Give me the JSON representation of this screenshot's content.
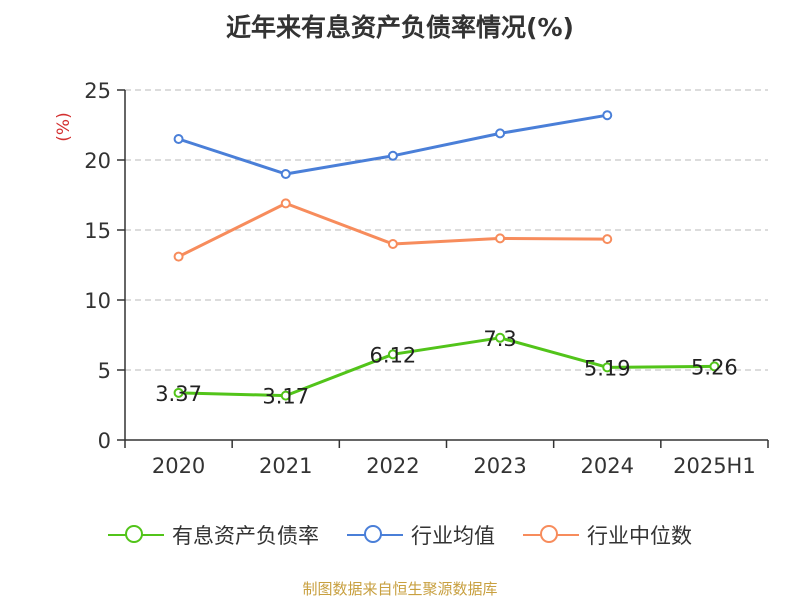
{
  "chart_data": {
    "type": "line",
    "title": "近年来有息资产负债率情况(%)",
    "ylabel": "(%)",
    "categories": [
      "2020",
      "2021",
      "2022",
      "2023",
      "2024",
      "2025H1"
    ],
    "ylim": [
      0,
      25
    ],
    "yticks": [
      0,
      5,
      10,
      15,
      20,
      25
    ],
    "grid": true,
    "legend_position": "bottom",
    "series": [
      {
        "name": "有息资产负债率",
        "color": "#52c41a",
        "values": [
          3.37,
          3.17,
          6.12,
          7.3,
          5.19,
          5.26
        ],
        "show_labels": true
      },
      {
        "name": "行业均值",
        "color": "#4a7fd8",
        "values": [
          21.5,
          19.0,
          20.3,
          21.9,
          23.2,
          null
        ],
        "show_labels": false
      },
      {
        "name": "行业中位数",
        "color": "#f78c5c",
        "values": [
          13.1,
          16.9,
          14.0,
          14.4,
          14.35,
          null
        ],
        "show_labels": false
      }
    ],
    "source": "制图数据来自恒生聚源数据库"
  }
}
